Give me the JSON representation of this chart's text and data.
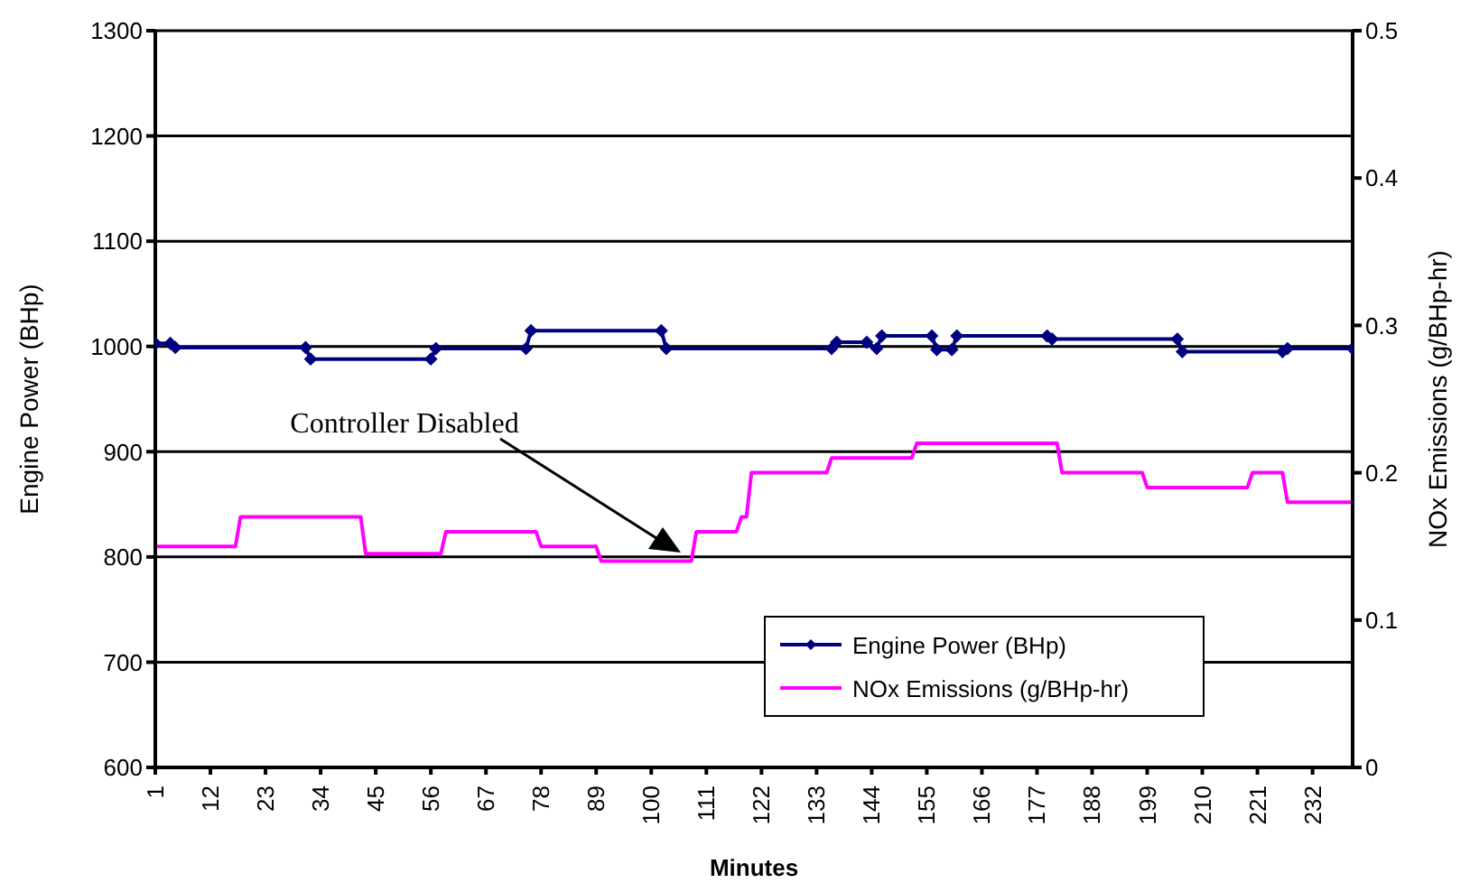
{
  "chart_data": {
    "type": "line",
    "xlabel": "Minutes",
    "ylabel": "Engine Power (BHp)",
    "y2label": "NOx Emissions (g/BHp-hr)",
    "xlim": [
      1,
      240
    ],
    "xticks": [
      1,
      12,
      23,
      34,
      45,
      56,
      67,
      78,
      89,
      100,
      111,
      122,
      133,
      144,
      155,
      166,
      177,
      188,
      199,
      210,
      221,
      232
    ],
    "ylim": [
      600,
      1300
    ],
    "yticks": [
      600,
      700,
      800,
      900,
      1000,
      1100,
      1200,
      1300
    ],
    "y2lim": [
      0,
      0.5
    ],
    "y2ticks": [
      0,
      0.1,
      0.2,
      0.3,
      0.4,
      0.5
    ],
    "grid": "y",
    "legend": "bottom right",
    "line_style": "solid",
    "annotations": [
      "Controller Disabled"
    ],
    "series": [
      {
        "name": "Engine Power (BHp)",
        "color": "#000080",
        "marker": "diamond",
        "x": [
          1,
          4,
          5,
          31,
          32,
          56,
          57,
          75,
          76,
          102,
          103,
          136,
          137,
          143,
          145,
          146,
          156,
          157,
          160,
          161,
          179,
          180,
          205,
          206,
          226,
          227,
          240
        ],
        "values": [
          1003,
          1003,
          999,
          999,
          988,
          988,
          998,
          998,
          1015,
          1015,
          998,
          998,
          1004,
          1004,
          998,
          1010,
          1010,
          997,
          997,
          1010,
          1010,
          1007,
          1007,
          995,
          995,
          998,
          998
        ]
      },
      {
        "name": "NOx Emissions (g/BHp-hr)",
        "color": "#ff00ff",
        "marker": "none",
        "axis": "y2",
        "x": [
          1,
          17,
          18,
          42,
          43,
          58,
          59,
          77,
          78,
          89,
          90,
          108,
          109,
          117,
          118,
          119,
          120,
          135,
          136,
          152,
          153,
          181,
          182,
          198,
          199,
          219,
          220,
          226,
          227,
          240
        ],
        "values": [
          0.15,
          0.15,
          0.17,
          0.17,
          0.145,
          0.145,
          0.16,
          0.16,
          0.15,
          0.15,
          0.14,
          0.14,
          0.16,
          0.16,
          0.17,
          0.17,
          0.2,
          0.2,
          0.21,
          0.21,
          0.22,
          0.22,
          0.2,
          0.2,
          0.19,
          0.19,
          0.2,
          0.2,
          0.18,
          0.18
        ]
      }
    ]
  }
}
